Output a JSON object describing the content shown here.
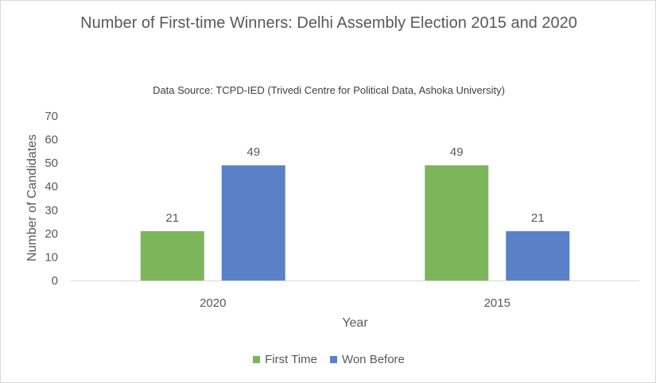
{
  "chart_data": {
    "type": "bar",
    "title": "Number of First-time Winners: Delhi Assembly Election 2015 and 2020",
    "subtitle": "Data Source: TCPD-IED (Trivedi Centre for Political Data,  Ashoka University)",
    "xlabel": "Year",
    "ylabel": "Number of Candidates",
    "categories": [
      "2020",
      "2015"
    ],
    "series": [
      {
        "name": "First Time",
        "color": "#7cb55a",
        "values": [
          21,
          49
        ]
      },
      {
        "name": "Won Before",
        "color": "#5a80c8",
        "values": [
          49,
          21
        ]
      }
    ],
    "ylim": [
      0,
      70
    ],
    "yticks": [
      "0",
      "10",
      "20",
      "30",
      "40",
      "50",
      "60",
      "70"
    ],
    "data_labels": true,
    "grid": false,
    "legend_position": "bottom"
  }
}
